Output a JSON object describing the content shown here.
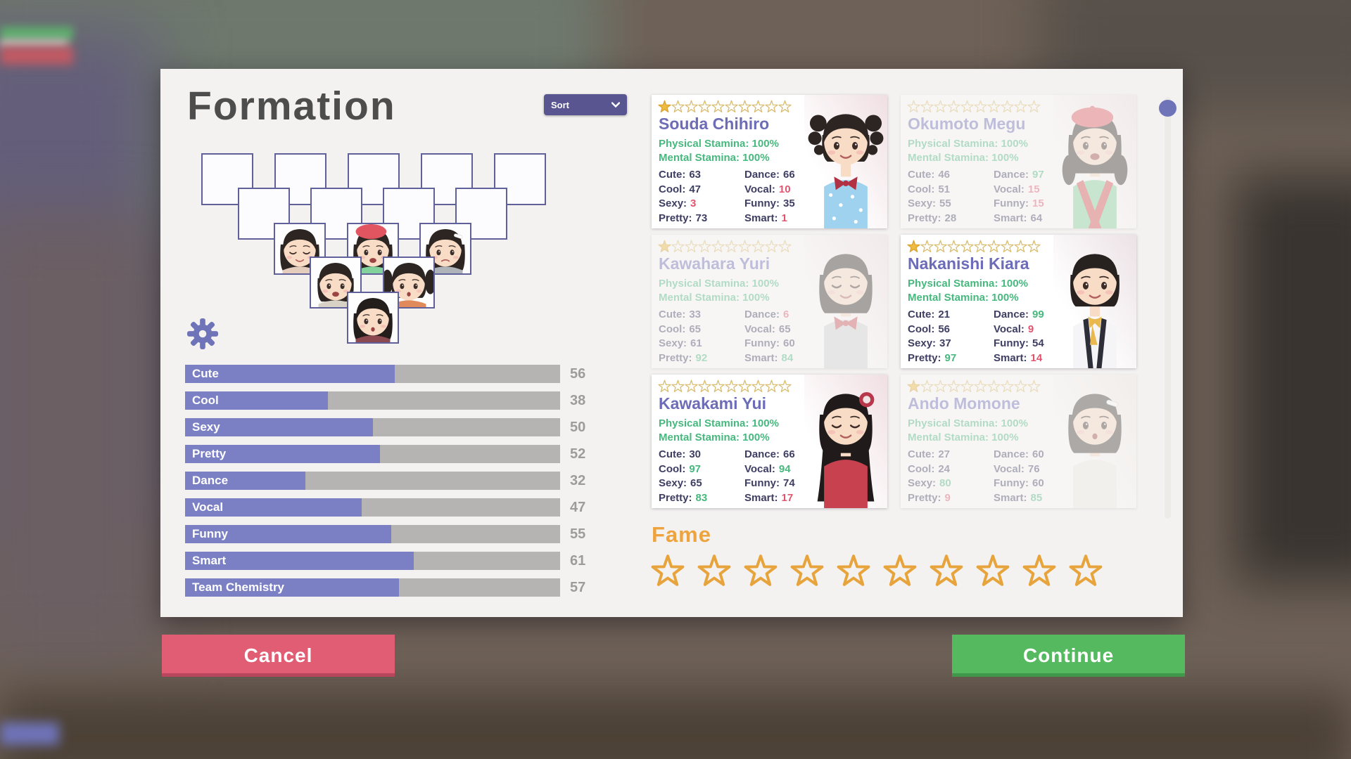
{
  "title": "Formation",
  "sort": {
    "label": "Sort"
  },
  "formation": {
    "row_sizes": [
      5,
      4,
      3,
      2,
      1
    ],
    "members": [
      {
        "row": 2,
        "col": 0,
        "portrait": "girl-bob-smiling",
        "look": {
          "style": "bob",
          "eyes": "closed",
          "mouth": "smile",
          "hair": "#2c2522",
          "outfit": "#e5cdbd"
        }
      },
      {
        "row": 2,
        "col": 1,
        "portrait": "girl-red-beret",
        "look": {
          "style": "lowtails",
          "eyes": "open",
          "mouth": "open",
          "hair": "#2c2522",
          "outfit": "#82d29c",
          "beret": "#e0555f"
        }
      },
      {
        "row": 2,
        "col": 2,
        "portrait": "girl-white-hairclip",
        "look": {
          "style": "bob",
          "eyes": "open",
          "mouth": "worried",
          "hair": "#2c2522",
          "outfit": "#aeb3ba",
          "clip": "#ffffff"
        }
      },
      {
        "row": 3,
        "col": 0,
        "portrait": "girl-short-hair-open-mouth",
        "look": {
          "style": "short",
          "eyes": "open",
          "mouth": "open",
          "hair": "#2c2522",
          "outfit": "#d8d2c6"
        }
      },
      {
        "row": 3,
        "col": 1,
        "portrait": "girl-twin-tails-orange",
        "look": {
          "style": "twintails",
          "eyes": "open",
          "mouth": "o",
          "hair": "#2c2522",
          "outfit": "#e08a5c"
        }
      },
      {
        "row": 4,
        "col": 0,
        "portrait": "girl-long-hair-clasped",
        "look": {
          "style": "long",
          "eyes": "open",
          "mouth": "o",
          "hair": "#231d1c",
          "outfit": "#8a4a50"
        }
      }
    ]
  },
  "team_stats": [
    {
      "label": "Cute",
      "value": 56
    },
    {
      "label": "Cool",
      "value": 38
    },
    {
      "label": "Sexy",
      "value": 50
    },
    {
      "label": "Pretty",
      "value": 52
    },
    {
      "label": "Dance",
      "value": 32
    },
    {
      "label": "Vocal",
      "value": 47
    },
    {
      "label": "Funny",
      "value": 55
    },
    {
      "label": "Smart",
      "value": 61
    },
    {
      "label": "Team Chemistry",
      "value": 57
    }
  ],
  "roster": {
    "cards": [
      {
        "name": "Souda Chihiro",
        "stars_filled": 1,
        "stars_total": 10,
        "faded": false,
        "physical_label": "Physical Stamina:",
        "physical_value": "100%",
        "mental_label": "Mental Stamina:",
        "mental_value": "100%",
        "stats": [
          {
            "label": "Cute",
            "value": 63
          },
          {
            "label": "Cool",
            "value": 47
          },
          {
            "label": "Sexy",
            "value": 3
          },
          {
            "label": "Pretty",
            "value": 73
          },
          {
            "label": "Dance",
            "value": 66
          },
          {
            "label": "Vocal",
            "value": 10
          },
          {
            "label": "Funny",
            "value": 35
          },
          {
            "label": "Smart",
            "value": 1
          }
        ],
        "look": {
          "style": "twintails",
          "curly": true,
          "eyes": "open",
          "mouth": "smile",
          "hair": "#2c2522",
          "outfit": "#9fd2ee",
          "polka": true,
          "bow": "#b23043",
          "bg": "#f0dfe3"
        }
      },
      {
        "name": "Okumoto Megu",
        "stars_filled": 0,
        "stars_total": 10,
        "faded": true,
        "physical_label": "Physical Stamina:",
        "physical_value": "100%",
        "mental_label": "Mental Stamina:",
        "mental_value": "100%",
        "stats": [
          {
            "label": "Cute",
            "value": 46
          },
          {
            "label": "Cool",
            "value": 51
          },
          {
            "label": "Sexy",
            "value": 55
          },
          {
            "label": "Pretty",
            "value": 28
          },
          {
            "label": "Dance",
            "value": 97
          },
          {
            "label": "Vocal",
            "value": 15
          },
          {
            "label": "Funny",
            "value": 15
          },
          {
            "label": "Smart",
            "value": 64
          }
        ],
        "look": {
          "style": "lowtails",
          "eyes": "open",
          "mouth": "open",
          "hair": "#2c2522",
          "outfit": "#82d29c",
          "trim": "#d05050",
          "beret": "#e0555f",
          "bg": "#f0dfe3"
        }
      },
      {
        "name": "Kawahara Yuri",
        "stars_filled": 1,
        "stars_total": 10,
        "faded": true,
        "physical_label": "Physical Stamina:",
        "physical_value": "100%",
        "mental_label": "Mental Stamina:",
        "mental_value": "100%",
        "stats": [
          {
            "label": "Cute",
            "value": 33
          },
          {
            "label": "Cool",
            "value": 65
          },
          {
            "label": "Sexy",
            "value": 61
          },
          {
            "label": "Pretty",
            "value": 92
          },
          {
            "label": "Dance",
            "value": 6
          },
          {
            "label": "Vocal",
            "value": 65
          },
          {
            "label": "Funny",
            "value": 60
          },
          {
            "label": "Smart",
            "value": 84
          }
        ],
        "look": {
          "style": "bob",
          "eyes": "closed",
          "mouth": "smile",
          "hair": "#2c2522",
          "outfit": "#d3d4da",
          "bow": "#c74b55",
          "bg": "#f0dfe3"
        }
      },
      {
        "name": "Nakanishi Kiara",
        "stars_filled": 1,
        "stars_total": 10,
        "faded": false,
        "physical_label": "Physical Stamina:",
        "physical_value": "100%",
        "mental_label": "Mental Stamina:",
        "mental_value": "100%",
        "stats": [
          {
            "label": "Cute",
            "value": 21
          },
          {
            "label": "Cool",
            "value": 56
          },
          {
            "label": "Sexy",
            "value": 37
          },
          {
            "label": "Pretty",
            "value": 97
          },
          {
            "label": "Dance",
            "value": 99
          },
          {
            "label": "Vocal",
            "value": 9
          },
          {
            "label": "Funny",
            "value": 54
          },
          {
            "label": "Smart",
            "value": 14
          }
        ],
        "look": {
          "style": "short",
          "eyes": "open",
          "mouth": "smile",
          "hair": "#272120",
          "outfit": "#f5f5f7",
          "suspenders": "#2e2e38",
          "scarf": "#e9b84e",
          "bg": "#ece2e6"
        }
      },
      {
        "name": "Kawakami Yui",
        "stars_filled": 0,
        "stars_total": 10,
        "faded": false,
        "physical_label": "Physical Stamina:",
        "physical_value": "100%",
        "mental_label": "Mental Stamina:",
        "mental_value": "100%",
        "stats": [
          {
            "label": "Cute",
            "value": 30
          },
          {
            "label": "Cool",
            "value": 97
          },
          {
            "label": "Sexy",
            "value": 65
          },
          {
            "label": "Pretty",
            "value": 83
          },
          {
            "label": "Dance",
            "value": 66
          },
          {
            "label": "Vocal",
            "value": 94
          },
          {
            "label": "Funny",
            "value": 74
          },
          {
            "label": "Smart",
            "value": 17
          }
        ],
        "look": {
          "style": "long",
          "eyes": "closed",
          "mouth": "smile",
          "hair": "#201b1a",
          "outfit": "#c8414f",
          "flower": "#b8374a",
          "bg": "#f0dfe3"
        }
      },
      {
        "name": "Ando Momone",
        "stars_filled": 1,
        "stars_total": 10,
        "faded": true,
        "physical_label": "Physical Stamina:",
        "physical_value": "100%",
        "mental_label": "Mental Stamina:",
        "mental_value": "100%",
        "stats": [
          {
            "label": "Cute",
            "value": 27
          },
          {
            "label": "Cool",
            "value": 24
          },
          {
            "label": "Sexy",
            "value": 80
          },
          {
            "label": "Pretty",
            "value": 9
          },
          {
            "label": "Dance",
            "value": 60
          },
          {
            "label": "Vocal",
            "value": 76
          },
          {
            "label": "Funny",
            "value": 60
          },
          {
            "label": "Smart",
            "value": 85
          }
        ],
        "look": {
          "style": "bob",
          "eyes": "open",
          "mouth": "o",
          "hair": "#3a3431",
          "outfit": "#efede7",
          "clip": "#ffffff",
          "bg": "#efe7e4"
        }
      }
    ]
  },
  "fame": {
    "label": "Fame",
    "stars_total": 10,
    "stars_filled": 0
  },
  "buttons": {
    "cancel": "Cancel",
    "continue": "Continue"
  },
  "colors": {
    "accent_purple": "#6f74b9",
    "bar_fill": "#7b80c5",
    "bar_track": "#b5b4b2",
    "name_purple": "#6c6cb8",
    "stamina_green": "#47b87e",
    "stat_low_red": "#e0556e",
    "stat_high_green": "#47b87e",
    "stat_normal": "#3e3e63",
    "star_gold": "#eebc3f",
    "star_outline": "#d8bc6e",
    "fame_orange": "#e8a43c",
    "cancel_red": "#e15d73",
    "continue_green": "#55b95f",
    "sort_bg": "#585591",
    "panel_bg": "#f4f2f0"
  }
}
